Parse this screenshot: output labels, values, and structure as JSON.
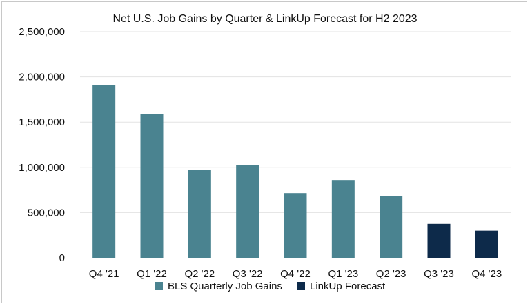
{
  "chart_data": {
    "type": "bar",
    "title": "Net U.S. Job Gains by Quarter & LinkUp Forecast for H2 2023",
    "xlabel": "",
    "ylabel": "",
    "categories": [
      "Q4 '21",
      "Q1 '22",
      "Q2 '22",
      "Q3 '22",
      "Q4 '22",
      "Q1 '23",
      "Q2 '23",
      "Q3 '23",
      "Q4 '23"
    ],
    "series": [
      {
        "name": "BLS Quarterly Job Gains",
        "color": "#4a8390",
        "values": [
          1910000,
          1590000,
          975000,
          1025000,
          715000,
          860000,
          680000,
          null,
          null
        ]
      },
      {
        "name": "LinkUp Forecast",
        "color": "#0d2a4a",
        "values": [
          null,
          null,
          null,
          null,
          null,
          null,
          null,
          375000,
          300000
        ]
      }
    ],
    "ylim": [
      0,
      2500000
    ],
    "yticks": [
      0,
      500000,
      1000000,
      1500000,
      2000000,
      2500000
    ],
    "ytick_labels": [
      "0",
      "500,000",
      "1,000,000",
      "1,500,000",
      "2,000,000",
      "2,500,000"
    ],
    "grid": true,
    "legend_position": "bottom"
  }
}
